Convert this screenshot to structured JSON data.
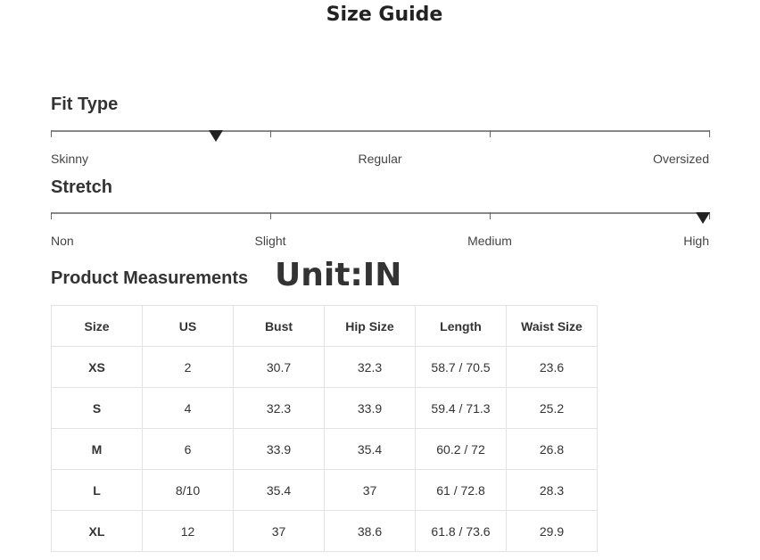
{
  "title": "Size Guide",
  "fit": {
    "heading": "Fit Type",
    "labels": [
      "Skinny",
      "Regular",
      "Oversized"
    ],
    "ticks": 4,
    "value": 0.25
  },
  "stretch": {
    "heading": "Stretch",
    "labels": [
      "Non",
      "Slight",
      "Medium",
      "High"
    ],
    "ticks": 4,
    "value": 0.99
  },
  "measurements": {
    "heading": "Product Measurements",
    "unit": "Unit:IN",
    "columns": [
      "Size",
      "US",
      "Bust",
      "Hip Size",
      "Length",
      "Waist Size"
    ],
    "rows": [
      [
        "XS",
        "2",
        "30.7",
        "32.3",
        "58.7 / 70.5",
        "23.6"
      ],
      [
        "S",
        "4",
        "32.3",
        "33.9",
        "59.4 / 71.3",
        "25.2"
      ],
      [
        "M",
        "6",
        "33.9",
        "35.4",
        "60.2 / 72",
        "26.8"
      ],
      [
        "L",
        "8/10",
        "35.4",
        "37",
        "61 / 72.8",
        "28.3"
      ],
      [
        "XL",
        "12",
        "37",
        "38.6",
        "61.8 / 73.6",
        "29.9"
      ]
    ]
  }
}
